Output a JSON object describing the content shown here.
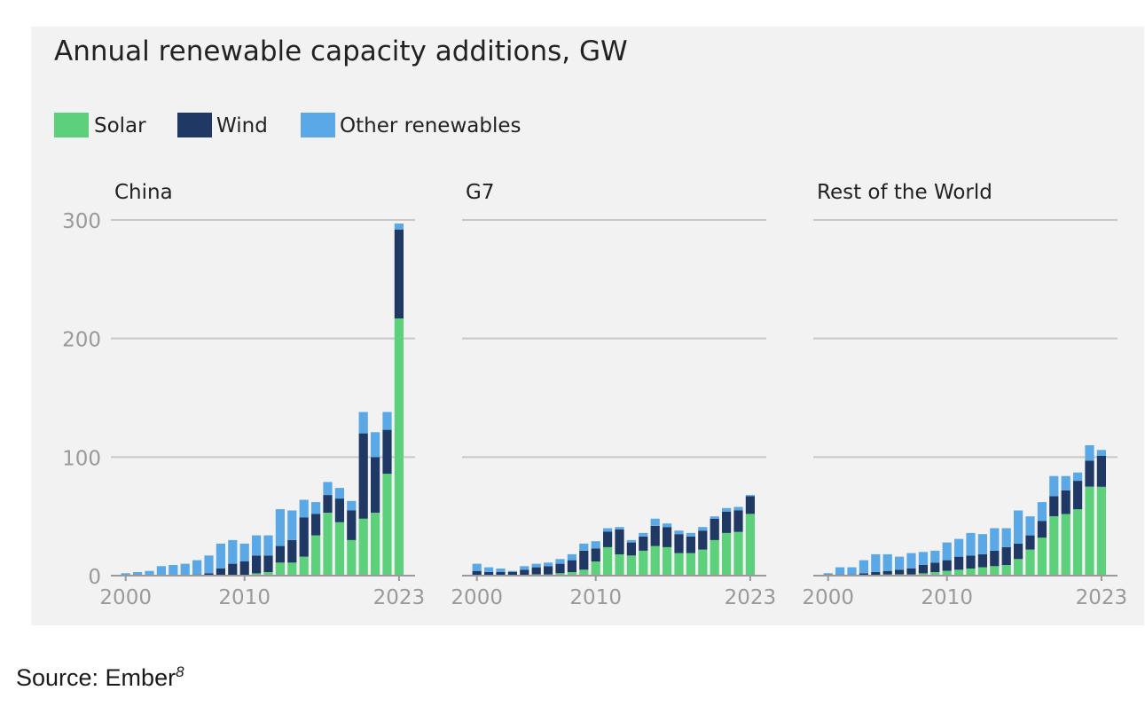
{
  "title": "Annual renewable capacity additions, GW",
  "legend": [
    {
      "label": "Solar",
      "color": "#5dd07b"
    },
    {
      "label": "Wind",
      "color": "#1f3864"
    },
    {
      "label": "Other renewables",
      "color": "#5aa9e6"
    }
  ],
  "source": {
    "text": "Source: Ember",
    "footnote": "8"
  },
  "chart_data": {
    "type": "bar",
    "stacked": true,
    "title": "Annual renewable capacity additions, GW",
    "unit": "GW",
    "x": [
      2000,
      2001,
      2002,
      2003,
      2004,
      2005,
      2006,
      2007,
      2008,
      2009,
      2010,
      2011,
      2012,
      2013,
      2014,
      2015,
      2016,
      2017,
      2018,
      2019,
      2020,
      2021,
      2022,
      2023
    ],
    "x_ticks": [
      "2000",
      "2010",
      "2023"
    ],
    "y_ticks": [
      "0",
      "100",
      "200",
      "300"
    ],
    "ylim": [
      0,
      300
    ],
    "grid": true,
    "legend_position": "top-left",
    "panels": [
      {
        "name": "China",
        "series": [
          {
            "name": "Solar",
            "values": [
              0,
              0,
              0,
              0,
              0,
              0,
              0,
              0,
              0,
              0,
              0,
              2,
              3,
              11,
              11,
              16,
              34,
              53,
              45,
              30,
              48,
              53,
              86,
              217
            ]
          },
          {
            "name": "Wind",
            "values": [
              0,
              0,
              0,
              0,
              0,
              0,
              1,
              2,
              6,
              10,
              12,
              15,
              14,
              14,
              19,
              33,
              18,
              15,
              20,
              25,
              72,
              47,
              37,
              75
            ]
          },
          {
            "name": "Other renewables",
            "values": [
              2,
              3,
              4,
              8,
              9,
              10,
              12,
              15,
              21,
              20,
              15,
              17,
              17,
              31,
              25,
              15,
              10,
              11,
              9,
              8,
              18,
              21,
              15,
              5
            ]
          }
        ]
      },
      {
        "name": "G7",
        "series": [
          {
            "name": "Solar",
            "values": [
              0,
              0,
              0,
              0,
              0,
              1,
              1,
              2,
              3,
              5,
              12,
              24,
              18,
              17,
              21,
              25,
              24,
              19,
              19,
              22,
              30,
              36,
              37,
              52
            ]
          },
          {
            "name": "Wind",
            "values": [
              4,
              3,
              3,
              3,
              5,
              6,
              7,
              8,
              10,
              16,
              11,
              13,
              21,
              11,
              12,
              17,
              17,
              16,
              14,
              16,
              18,
              18,
              18,
              15
            ]
          },
          {
            "name": "Other renewables",
            "values": [
              6,
              4,
              3,
              1,
              3,
              3,
              3,
              4,
              5,
              6,
              6,
              3,
              2,
              2,
              3,
              6,
              3,
              3,
              3,
              3,
              2,
              3,
              3,
              1
            ]
          }
        ]
      },
      {
        "name": "Rest of the World",
        "series": [
          {
            "name": "Solar",
            "values": [
              0,
              0,
              0,
              0,
              0,
              1,
              1,
              1,
              2,
              3,
              4,
              5,
              6,
              7,
              8,
              9,
              14,
              22,
              32,
              50,
              52,
              56,
              75,
              75
            ]
          },
          {
            "name": "Wind",
            "values": [
              1,
              1,
              1,
              2,
              3,
              3,
              4,
              5,
              7,
              8,
              9,
              11,
              11,
              11,
              13,
              15,
              13,
              12,
              14,
              17,
              20,
              24,
              22,
              26
            ]
          },
          {
            "name": "Other renewables",
            "values": [
              1,
              6,
              6,
              11,
              15,
              14,
              11,
              13,
              11,
              10,
              15,
              15,
              19,
              17,
              19,
              16,
              28,
              16,
              16,
              17,
              12,
              7,
              13,
              5
            ]
          }
        ]
      }
    ]
  }
}
